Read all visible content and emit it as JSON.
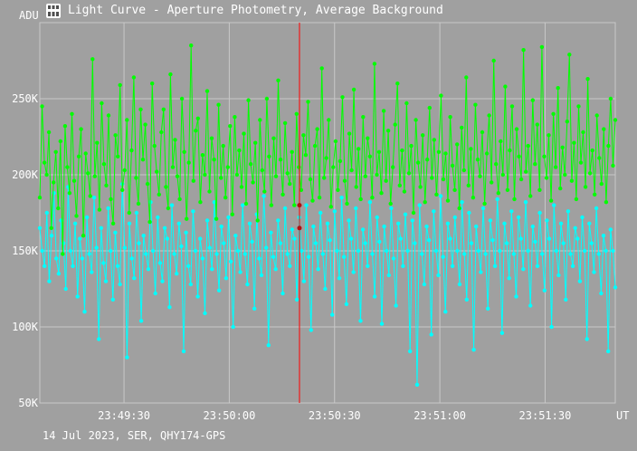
{
  "window": {
    "title": "Light Curve - Aperture Photometry, Average Background",
    "icon": "app-icon"
  },
  "footer": "14 Jul 2023, SER, QHY174-GPS",
  "colors": {
    "background": "#a0a0a0",
    "grid": "#c8c8c8",
    "target_series": "#00ff00",
    "comparison_series": "#00ffff",
    "cursor_line": "#ff0000"
  },
  "chart_data": {
    "type": "line",
    "title": "Light Curve - Aperture Photometry, Average Background",
    "xlabel": "UT",
    "ylabel": "ADU",
    "x_unit": "UT",
    "ylim": [
      50000,
      300000
    ],
    "yticks": [
      50000,
      100000,
      150000,
      200000,
      250000
    ],
    "ytick_labels": [
      "50K",
      "100K",
      "150K",
      "200K",
      "250K"
    ],
    "xlim": [
      "23:49:06",
      "23:51:50"
    ],
    "xticks": [
      "23:49:30",
      "23:50:00",
      "23:50:30",
      "23:51:00",
      "23:51:30"
    ],
    "grid": true,
    "legend": "none",
    "cursor": {
      "x": "23:50:20",
      "values": [
        180000,
        165000
      ]
    },
    "series": [
      {
        "x_start": "23:49:06",
        "x_end": "23:51:50",
        "values": [
          185000,
          245000,
          208000,
          200000,
          228000,
          165000,
          195000,
          215000,
          178000,
          222000,
          148000,
          232000,
          205000,
          188000,
          240000,
          196000,
          173000,
          212000,
          230000,
          160000,
          214000,
          201000,
          186000,
          276000,
          199000,
          221000,
          177000,
          247000,
          207000,
          193000,
          239000,
          184000,
          168000,
          226000,
          212000,
          259000,
          190000,
          203000,
          236000,
          175000,
          216000,
          264000,
          198000,
          181000,
          243000,
          210000,
          233000,
          194000,
          169000,
          260000,
          219000,
          202000,
          187000,
          228000,
          243000,
          192000,
          178000,
          266000,
          205000,
          223000,
          199000,
          184000,
          250000,
          215000,
          171000,
          208000,
          285000,
          196000,
          229000,
          237000,
          182000,
          213000,
          200000,
          255000,
          189000,
          224000,
          210000,
          171000,
          246000,
          198000,
          219000,
          185000,
          205000,
          232000,
          174000,
          238000,
          200000,
          216000,
          192000,
          227000,
          181000,
          249000,
          207000,
          195000,
          221000,
          170000,
          236000,
          203000,
          189000,
          250000,
          212000,
          180000,
          224000,
          199000,
          262000,
          210000,
          187000,
          234000,
          201000,
          194000,
          215000,
          180000,
          240000,
          205000,
          190000,
          226000,
          213000,
          248000,
          197000,
          183000,
          219000,
          230000,
          185000,
          270000,
          198000,
          211000,
          236000,
          179000,
          205000,
          222000,
          190000,
          209000,
          251000,
          196000,
          181000,
          227000,
          203000,
          256000,
          192000,
          217000,
          184000,
          238000,
          199000,
          224000,
          212000,
          185000,
          273000,
          200000,
          215000,
          188000,
          242000,
          196000,
          229000,
          181000,
          205000,
          233000,
          260000,
          193000,
          216000,
          189000,
          247000,
          201000,
          219000,
          175000,
          236000,
          208000,
          192000,
          226000,
          182000,
          210000,
          244000,
          198000,
          223000,
          187000,
          215000,
          252000,
          197000,
          214000,
          183000,
          238000,
          206000,
          190000,
          220000,
          178000,
          231000,
          203000,
          264000,
          193000,
          217000,
          185000,
          246000,
          210000,
          199000,
          228000,
          181000,
          214000,
          239000,
          195000,
          275000,
          207000,
          188000,
          222000,
          200000,
          258000,
          190000,
          216000,
          245000,
          184000,
          230000,
          212000,
          197000,
          282000,
          202000,
          219000,
          186000,
          249000,
          207000,
          233000,
          190000,
          284000,
          212000,
          198000,
          226000,
          183000,
          240000,
          205000,
          257000,
          191000,
          218000,
          200000,
          235000,
          279000,
          196000,
          221000,
          184000,
          245000,
          208000,
          228000,
          192000,
          263000,
          201000,
          216000,
          187000,
          239000,
          211000,
          194000,
          230000,
          182000,
          219000,
          250000,
          206000,
          236000
        ],
        "name": ""
      },
      {
        "x_start": "23:49:06",
        "x_end": "23:51:50",
        "values": [
          165000,
          150000,
          140000,
          175000,
          130000,
          160000,
          188000,
          145000,
          135000,
          170000,
          155000,
          125000,
          192000,
          150000,
          140000,
          168000,
          120000,
          158000,
          145000,
          110000,
          172000,
          148000,
          136000,
          185000,
          152000,
          92000,
          165000,
          142000,
          130000,
          178000,
          150000,
          118000,
          162000,
          140000,
          128000,
          194000,
          152000,
          80000,
          168000,
          145000,
          132000,
          175000,
          155000,
          104000,
          160000,
          148000,
          138000,
          182000,
          150000,
          122000,
          172000,
          142000,
          130000,
          165000,
          158000,
          113000,
          180000,
          148000,
          135000,
          168000,
          153000,
          84000,
          162000,
          140000,
          128000,
          176000,
          150000,
          120000,
          158000,
          145000,
          109000,
          170000,
          152000,
          138000,
          182000,
          148000,
          124000,
          166000,
          155000,
          132000,
          172000,
          143000,
          100000,
          160000,
          150000,
          136000,
          180000,
          148000,
          128000,
          168000,
          156000,
          112000,
          174000,
          145000,
          134000,
          186000,
          152000,
          88000,
          162000,
          146000,
          138000,
          170000,
          155000,
          122000,
          178000,
          148000,
          140000,
          164000,
          158000,
          118000,
          172000,
          150000,
          130000,
          180000,
          146000,
          98000,
          166000,
          155000,
          138000,
          175000,
          148000,
          125000,
          168000,
          157000,
          108000,
          176000,
          150000,
          132000,
          185000,
          146000,
          115000,
          170000,
          158000,
          136000,
          178000,
          150000,
          104000,
          164000,
          155000,
          140000,
          182000,
          148000,
          120000,
          172000,
          156000,
          102000,
          166000,
          150000,
          134000,
          178000,
          145000,
          114000,
          168000,
          158000,
          140000,
          174000,
          150000,
          84000,
          170000,
          155000,
          62000,
          180000,
          148000,
          128000,
          166000,
          157000,
          95000,
          176000,
          150000,
          134000,
          186000,
          146000,
          110000,
          168000,
          158000,
          140000,
          172000,
          150000,
          128000,
          182000,
          148000,
          118000,
          175000,
          155000,
          85000,
          166000,
          150000,
          136000,
          178000,
          148000,
          112000,
          170000,
          157000,
          140000,
          184000,
          150000,
          96000,
          168000,
          155000,
          132000,
          176000,
          148000,
          120000,
          172000,
          158000,
          138000,
          182000,
          150000,
          114000,
          166000,
          156000,
          140000,
          175000,
          148000,
          124000,
          170000,
          158000,
          100000,
          180000,
          150000,
          134000,
          168000,
          155000,
          118000,
          176000,
          148000,
          140000,
          165000,
          158000,
          130000,
          172000,
          150000,
          92000,
          168000,
          155000,
          136000,
          178000,
          148000,
          122000,
          160000,
          150000,
          84000,
          164000,
          150000,
          126000
        ],
        "name": ""
      }
    ]
  }
}
